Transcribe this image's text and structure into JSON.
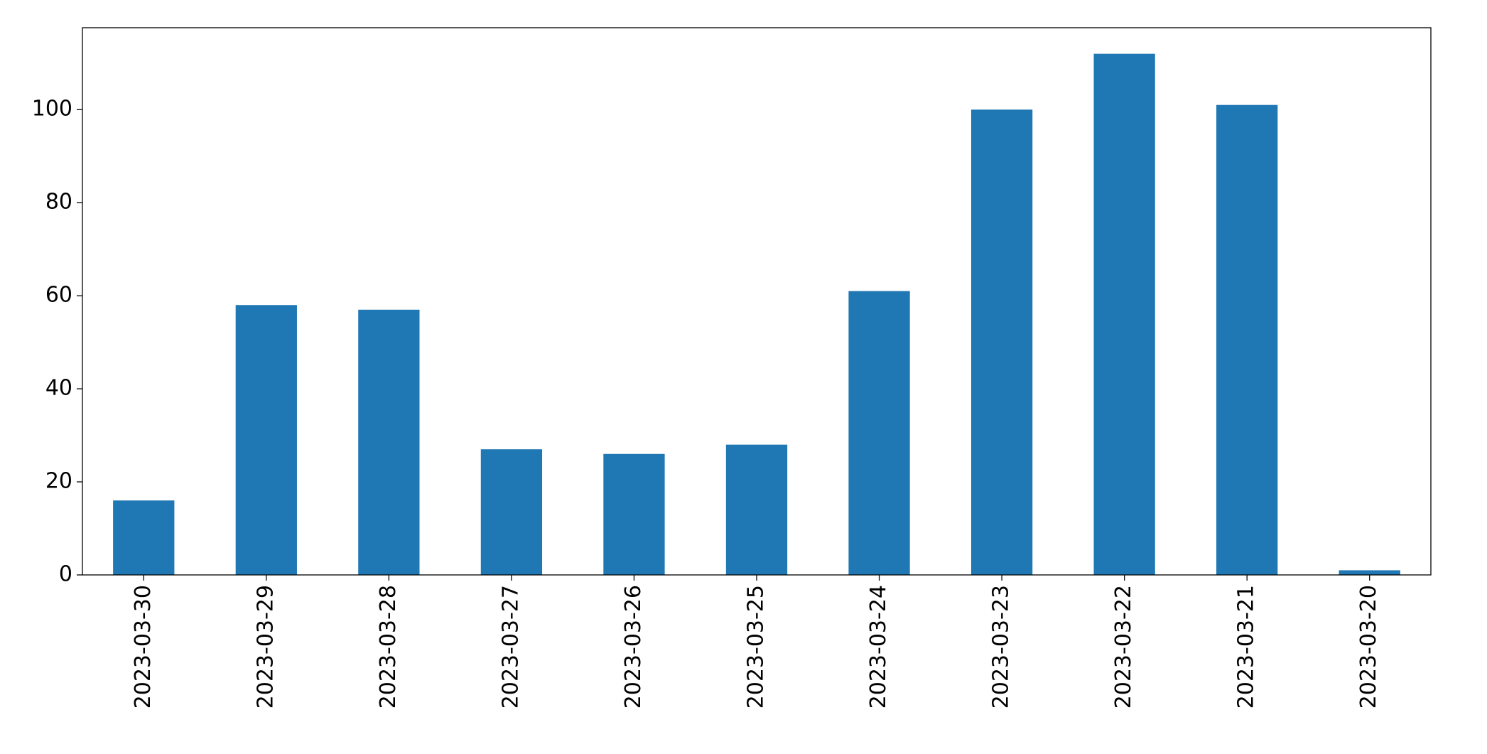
{
  "chart_data": {
    "type": "bar",
    "categories": [
      "2023-03-30",
      "2023-03-29",
      "2023-03-28",
      "2023-03-27",
      "2023-03-26",
      "2023-03-25",
      "2023-03-24",
      "2023-03-23",
      "2023-03-22",
      "2023-03-21",
      "2023-03-20"
    ],
    "values": [
      16,
      58,
      57,
      27,
      26,
      28,
      61,
      100,
      112,
      101,
      1
    ],
    "color": "#1f77b4",
    "ylim": [
      0,
      117.6
    ],
    "yticks": [
      0,
      20,
      40,
      60,
      80,
      100
    ],
    "grid": false
  }
}
